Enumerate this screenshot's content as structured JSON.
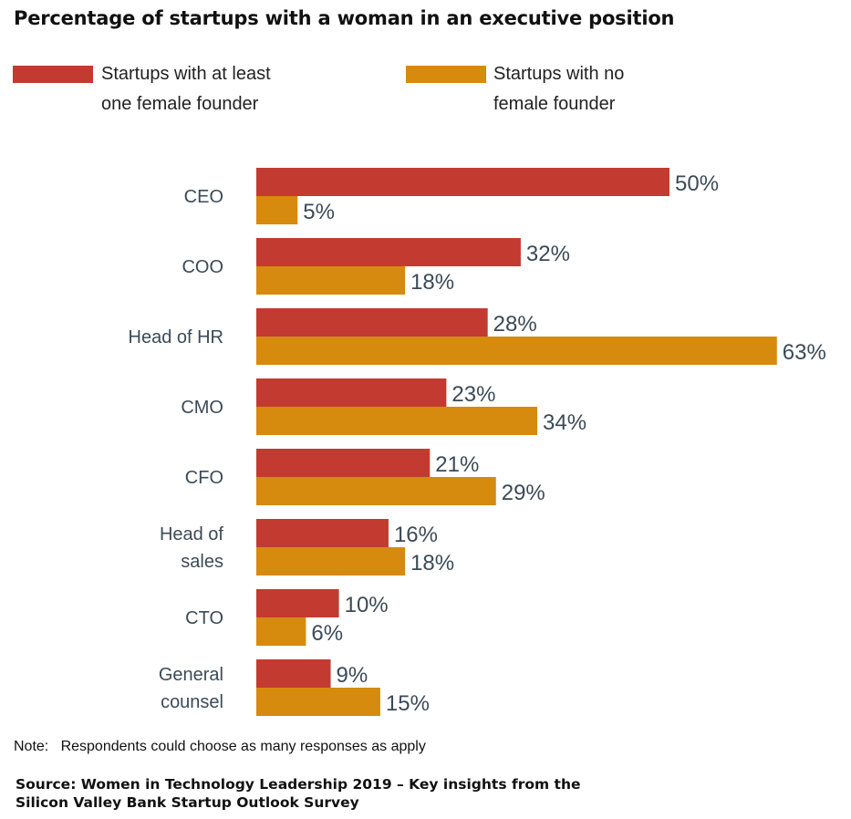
{
  "chart_data": {
    "type": "bar",
    "orientation": "horizontal",
    "title": "Percentage of startups with a woman in an executive position",
    "categories": [
      "CEO",
      "COO",
      "Head of HR",
      "CMO",
      "CFO",
      "Head of sales",
      "CTO",
      "General counsel"
    ],
    "category_label_lines": [
      [
        "CEO"
      ],
      [
        "COO"
      ],
      [
        "Head of HR"
      ],
      [
        "CMO"
      ],
      [
        "CFO"
      ],
      [
        "Head of",
        "sales"
      ],
      [
        "CTO"
      ],
      [
        "General",
        "counsel"
      ]
    ],
    "series": [
      {
        "name": "Startups with at least one female founder",
        "legend_lines": [
          "Startups with at least",
          "one female founder"
        ],
        "color": "#c33a31",
        "values": [
          50,
          32,
          28,
          23,
          21,
          16,
          10,
          9
        ]
      },
      {
        "name": "Startups with no female founder",
        "legend_lines": [
          "Startups with no",
          "female founder"
        ],
        "color": "#d68a0e",
        "values": [
          5,
          18,
          63,
          34,
          29,
          18,
          6,
          15
        ]
      }
    ],
    "value_suffix": "%",
    "xlabel": "",
    "ylabel": "",
    "xlim": [
      0,
      70
    ],
    "grid": false,
    "axes_visible": false,
    "legend_position": "top"
  },
  "note": "Note:   Respondents could choose as many responses as apply",
  "source_lines": [
    "Source: Women in Technology Leadership 2019 – Key insights from the",
    "Silicon Valley Bank Startup Outlook Survey"
  ],
  "colors": {
    "label_text": "#3c4a57",
    "title_text": "#111111"
  }
}
